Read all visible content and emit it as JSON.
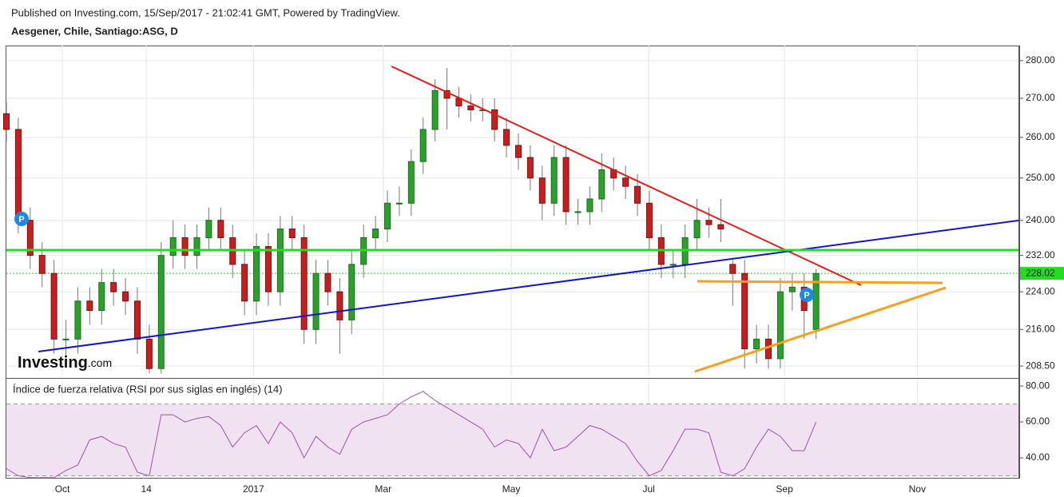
{
  "chart_data": [
    {
      "type": "candlestick",
      "source": "Published on Investing.com, 15/Sep/2017 - 21:02:41 GMT, Powered by TradingView.",
      "title": "Aesgener, Chile, Santiago:ASG, D",
      "logo": {
        "main": "Investing",
        "suffix": ".com"
      },
      "event_markers": [
        "P",
        "P"
      ],
      "log_scale": true,
      "grid": true,
      "up_color": "#2ca02c",
      "down_color": "#c81e1e",
      "wick_color": "#777777",
      "xlim": [
        0,
        170
      ],
      "ylim": [
        206.6,
        284.1
      ],
      "yticks": [
        {
          "value": 280,
          "label": "280.00"
        },
        {
          "value": 270,
          "label": "270.00"
        },
        {
          "value": 260,
          "label": "260.00"
        },
        {
          "value": 250,
          "label": "250.00"
        },
        {
          "value": 240,
          "label": "240.00"
        },
        {
          "value": 232,
          "label": "232.00"
        },
        {
          "value": 224,
          "label": "224.00"
        },
        {
          "value": 216,
          "label": "216.00"
        },
        {
          "value": 208.5,
          "label": "208.50"
        }
      ],
      "price_marker": {
        "value": 228.02,
        "label": "228.02"
      },
      "x": [
        0,
        2,
        4,
        6,
        8,
        10,
        12,
        14,
        16,
        18,
        20,
        22,
        24,
        26,
        28,
        30,
        32,
        34,
        36,
        38,
        40,
        42,
        44,
        46,
        48,
        50,
        52,
        54,
        56,
        58,
        60,
        62,
        64,
        66,
        68,
        70,
        72,
        74,
        76,
        78,
        80,
        82,
        84,
        86,
        88,
        90,
        92,
        94,
        96,
        98,
        100,
        102,
        104,
        106,
        108,
        110,
        112,
        114,
        116,
        118,
        120,
        122,
        124,
        126,
        128,
        130,
        132,
        134,
        136
      ],
      "open": [
        266,
        262,
        240,
        232,
        228,
        214,
        214,
        222,
        220,
        226,
        224,
        222,
        214,
        208,
        232,
        236,
        232,
        236,
        240,
        236,
        230,
        222,
        234,
        224,
        238,
        236,
        216,
        228,
        224,
        218,
        230,
        236,
        238,
        244,
        244,
        254,
        262,
        272,
        270,
        268,
        267,
        267,
        262,
        258,
        255,
        250,
        244,
        255,
        242,
        242,
        245,
        252,
        250,
        248,
        244,
        236,
        230,
        230,
        236,
        240,
        239,
        230,
        228,
        212,
        214,
        210,
        224,
        225,
        216
      ],
      "high": [
        269,
        265,
        243,
        235,
        231,
        218,
        225,
        225,
        229,
        229,
        227,
        225,
        217,
        235,
        240,
        239,
        239,
        243,
        243,
        239,
        233,
        237,
        237,
        241,
        241,
        239,
        231,
        231,
        227,
        233,
        239,
        241,
        247,
        248,
        257,
        265,
        275,
        278,
        273,
        271,
        270,
        270,
        265,
        261,
        258,
        253,
        258,
        258,
        245,
        248,
        256,
        255,
        253,
        251,
        247,
        239,
        233,
        239,
        245,
        243,
        245,
        231,
        231,
        217,
        217,
        227,
        228,
        228,
        229
      ],
      "low": [
        259,
        237,
        229,
        225,
        211,
        210,
        211,
        217,
        217,
        221,
        219,
        211,
        207,
        207,
        229,
        229,
        229,
        233,
        233,
        227,
        219,
        219,
        221,
        221,
        233,
        213,
        213,
        221,
        211,
        215,
        227,
        233,
        235,
        241,
        241,
        251,
        259,
        262,
        265,
        264,
        264,
        259,
        255,
        252,
        247,
        240,
        241,
        239,
        239,
        239,
        242,
        247,
        245,
        241,
        233,
        227,
        227,
        227,
        233,
        236,
        235,
        221,
        208,
        209,
        208,
        208,
        220,
        214,
        214
      ],
      "close": [
        262,
        240,
        232,
        228,
        214,
        214,
        222,
        220,
        226,
        224,
        222,
        214,
        208,
        232,
        236,
        232,
        236,
        240,
        236,
        230,
        222,
        234,
        224,
        238,
        236,
        216,
        228,
        224,
        218,
        230,
        236,
        238,
        244,
        244,
        254,
        262,
        272,
        270,
        268,
        267,
        267,
        262,
        258,
        255,
        250,
        244,
        255,
        242,
        242,
        245,
        252,
        250,
        248,
        244,
        236,
        230,
        230,
        236,
        240,
        239,
        238,
        228,
        212,
        214,
        210,
        224,
        225,
        220,
        228
      ]
    },
    {
      "type": "line",
      "title": "Índice de fuerza relativa (RSI por sus siglas en inglés) (14)",
      "color": "#a050b4",
      "band_color": "#f1e2f1",
      "upper_band": 70,
      "lower_band": 30,
      "xlim": [
        0,
        170
      ],
      "ylim": [
        28.9,
        83.6
      ],
      "yticks": [
        {
          "value": 80,
          "label": "80.00"
        },
        {
          "value": 60,
          "label": "60.00"
        },
        {
          "value": 40,
          "label": "40.00"
        }
      ],
      "xticks": [
        {
          "value": 9.4,
          "label": "Oct"
        },
        {
          "value": 23.5,
          "label": "14"
        },
        {
          "value": 41.5,
          "label": "2017"
        },
        {
          "value": 63.3,
          "label": "Mar"
        },
        {
          "value": 84.8,
          "label": "May"
        },
        {
          "value": 107.9,
          "label": "Jul"
        },
        {
          "value": 130.7,
          "label": "Sep"
        },
        {
          "value": 153,
          "label": "Nov"
        }
      ],
      "x": [
        0,
        2,
        4,
        6,
        8,
        10,
        12,
        14,
        16,
        18,
        20,
        22,
        24,
        26,
        28,
        30,
        32,
        34,
        36,
        38,
        40,
        42,
        44,
        46,
        48,
        50,
        52,
        54,
        56,
        58,
        60,
        62,
        64,
        66,
        68,
        70,
        72,
        74,
        76,
        78,
        80,
        82,
        84,
        86,
        88,
        90,
        92,
        94,
        96,
        98,
        100,
        102,
        104,
        106,
        108,
        110,
        112,
        114,
        116,
        118,
        120,
        122,
        124,
        126,
        128,
        130,
        132,
        134,
        136
      ],
      "values": [
        34,
        30,
        29,
        29,
        29,
        33,
        36,
        50,
        52,
        48,
        46,
        32,
        30,
        64,
        64,
        60,
        62,
        63,
        58,
        46,
        54,
        58,
        48,
        60,
        54,
        40,
        52,
        46,
        42,
        56,
        60,
        62,
        64,
        70,
        74,
        77,
        72,
        68,
        64,
        60,
        56,
        46,
        50,
        48,
        40,
        56,
        44,
        46,
        52,
        58,
        56,
        52,
        48,
        38,
        30,
        33,
        44,
        56,
        56,
        54,
        32,
        30,
        34,
        46,
        56,
        52,
        44,
        44,
        60
      ]
    }
  ]
}
